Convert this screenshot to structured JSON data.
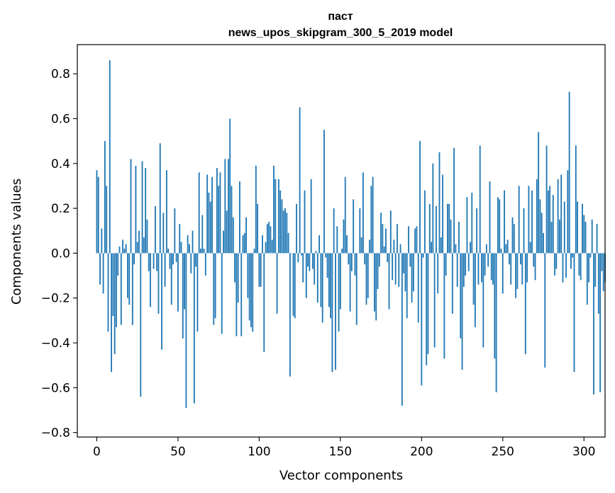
{
  "chart_data": {
    "type": "bar",
    "title_lines": [
      "паст",
      "news_upos_skipgram_300_5_2019 model"
    ],
    "xlabel": "Vector components",
    "ylabel": "Components values",
    "xlim": [
      -12,
      313
    ],
    "ylim": [
      -0.82,
      0.93
    ],
    "xticks": [
      0,
      50,
      100,
      150,
      200,
      250,
      300
    ],
    "yticks": [
      -0.8,
      -0.6,
      -0.4,
      -0.2,
      0.0,
      0.2,
      0.4,
      0.6,
      0.8
    ],
    "ytick_labels": [
      "−0.8",
      "−0.6",
      "−0.4",
      "−0.2",
      "0.0",
      "0.2",
      "0.4",
      "0.6",
      "0.8"
    ],
    "grid": false,
    "bar_color": "#1f77b4",
    "values": [
      0.37,
      0.34,
      -0.14,
      0.11,
      -0.18,
      0.5,
      0.3,
      -0.35,
      0.86,
      -0.53,
      -0.28,
      -0.45,
      -0.33,
      -0.1,
      0.03,
      -0.32,
      0.06,
      0.02,
      0.04,
      -0.2,
      -0.23,
      0.42,
      -0.32,
      -0.05,
      0.39,
      0.05,
      0.1,
      -0.64,
      0.41,
      0.07,
      0.38,
      0.15,
      -0.08,
      -0.24,
      0.0,
      -0.07,
      0.21,
      -0.08,
      -0.27,
      0.49,
      -0.43,
      0.18,
      -0.15,
      0.37,
      0.02,
      -0.07,
      -0.23,
      -0.05,
      0.2,
      -0.04,
      -0.26,
      0.13,
      0.05,
      -0.38,
      -0.25,
      -0.69,
      0.08,
      0.04,
      -0.09,
      0.1,
      -0.67,
      -0.06,
      -0.35,
      0.36,
      0.02,
      0.17,
      0.02,
      -0.1,
      0.35,
      0.27,
      0.23,
      0.34,
      -0.32,
      -0.29,
      0.38,
      0.3,
      0.36,
      -0.36,
      0.1,
      0.42,
      0.19,
      0.42,
      0.6,
      0.3,
      0.16,
      -0.13,
      -0.37,
      -0.22,
      0.32,
      -0.37,
      0.08,
      0.09,
      0.16,
      -0.2,
      -0.3,
      -0.33,
      -0.35,
      0.02,
      0.39,
      0.22,
      -0.15,
      -0.15,
      0.08,
      -0.44,
      0.05,
      0.13,
      0.14,
      0.12,
      0.06,
      0.39,
      0.33,
      -0.27,
      0.33,
      0.28,
      0.24,
      0.19,
      0.2,
      0.18,
      0.09,
      -0.55,
      0.0,
      -0.28,
      -0.29,
      0.22,
      -0.04,
      0.65,
      -0.01,
      -0.13,
      0.28,
      -0.2,
      -0.06,
      -0.08,
      0.33,
      -0.07,
      -0.14,
      0.01,
      -0.22,
      0.08,
      -0.24,
      -0.31,
      0.55,
      -0.02,
      -0.11,
      -0.24,
      -0.29,
      -0.53,
      0.2,
      -0.52,
      0.12,
      -0.35,
      -0.25,
      0.02,
      0.15,
      0.34,
      0.08,
      -0.05,
      -0.26,
      -0.08,
      0.24,
      -0.1,
      -0.32,
      0.0,
      0.2,
      0.07,
      0.36,
      -0.05,
      -0.23,
      -0.2,
      0.06,
      0.3,
      0.34,
      -0.26,
      -0.3,
      -0.16,
      -0.06,
      0.18,
      0.13,
      0.03,
      0.11,
      -0.04,
      -0.25,
      0.19,
      -0.12,
      0.06,
      -0.14,
      0.13,
      -0.15,
      0.04,
      -0.68,
      -0.09,
      -0.17,
      -0.29,
      0.12,
      -0.06,
      -0.22,
      -0.17,
      0.11,
      0.12,
      -0.31,
      0.5,
      -0.59,
      -0.02,
      0.28,
      -0.5,
      -0.45,
      0.22,
      0.05,
      0.4,
      -0.42,
      0.21,
      -0.18,
      0.45,
      0.07,
      0.35,
      -0.47,
      -0.1,
      0.22,
      0.22,
      0.15,
      -0.27,
      0.47,
      0.04,
      -0.15,
      0.14,
      -0.38,
      -0.52,
      -0.15,
      -0.1,
      0.25,
      -0.08,
      0.05,
      0.27,
      -0.23,
      -0.33,
      0.2,
      -0.14,
      0.48,
      -0.13,
      -0.42,
      -0.1,
      0.04,
      -0.06,
      0.32,
      -0.12,
      -0.14,
      -0.47,
      -0.62,
      0.25,
      0.24,
      0.02,
      -0.18,
      0.28,
      0.04,
      0.06,
      -0.05,
      -0.14,
      0.16,
      0.13,
      -0.2,
      -0.16,
      0.3,
      -0.05,
      -0.14,
      0.2,
      -0.45,
      -0.13,
      0.3,
      0.05,
      0.28,
      -0.06,
      -0.12,
      0.33,
      0.54,
      0.24,
      0.18,
      0.09,
      -0.51,
      0.48,
      0.28,
      0.3,
      0.14,
      0.26,
      -0.1,
      -0.07,
      0.33,
      0.15,
      0.35,
      -0.13,
      0.23,
      -0.11,
      0.37,
      0.72,
      -0.07,
      -0.02,
      -0.53,
      0.48,
      0.23,
      -0.1,
      -0.12,
      0.22,
      0.17,
      0.14,
      -0.23,
      -0.13,
      -0.02,
      0.15,
      -0.63,
      -0.15,
      0.13,
      -0.27,
      -0.62,
      -0.08,
      -0.17,
      -0.13
    ]
  }
}
